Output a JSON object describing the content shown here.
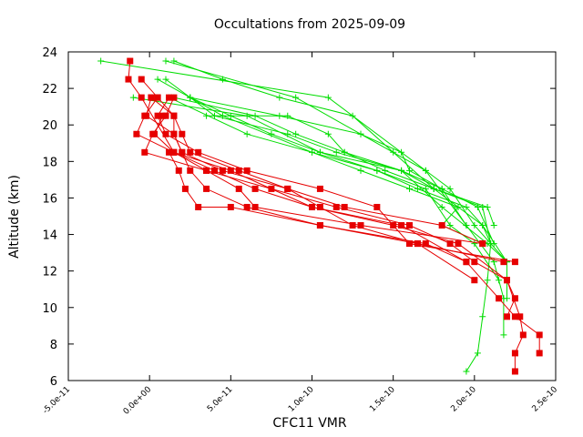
{
  "chart_data": {
    "type": "line",
    "title": "Occultations from 2025-09-09",
    "xlabel": "CFC11 VMR",
    "ylabel": "Altitude (km)",
    "xlim": [
      -5e-11,
      2.5e-10
    ],
    "ylim": [
      6,
      24
    ],
    "xticks": [
      -5e-11,
      0,
      5e-11,
      1e-10,
      1.5e-10,
      2e-10,
      2.5e-10
    ],
    "xtick_labels": [
      "-5.0e-11",
      "0.0e+00",
      "5.0e-11",
      "1.0e-10",
      "1.5e-10",
      "2.0e-10",
      "2.5e-10"
    ],
    "yticks": [
      6,
      8,
      10,
      12,
      14,
      16,
      18,
      20,
      22,
      24
    ],
    "ytick_labels": [
      "6",
      "8",
      "10",
      "12",
      "14",
      "16",
      "18",
      "20",
      "22",
      "24"
    ],
    "grid": false,
    "legend": false,
    "colors": {
      "red": "#e60000",
      "green": "#00dd00"
    },
    "series": [
      {
        "color": "red",
        "marker": "square",
        "points": [
          [
            -1.2e-11,
            23.5
          ],
          [
            -1.3e-11,
            22.5
          ],
          [
            -5e-12,
            21.5
          ],
          [
            1.5e-11,
            18.5
          ],
          [
            5e-11,
            17.5
          ],
          [
            1e-10,
            15.5
          ],
          [
            1.5e-10,
            14.5
          ],
          [
            1.9e-10,
            13.5
          ],
          [
            2.2e-10,
            11.5
          ],
          [
            2.28e-10,
            9.5
          ],
          [
            2.3e-10,
            8.5
          ],
          [
            2.25e-10,
            7.5
          ],
          [
            2.25e-10,
            6.5
          ]
        ]
      },
      {
        "color": "red",
        "marker": "square",
        "points": [
          [
            -5e-12,
            22.5
          ],
          [
            5e-12,
            21.5
          ],
          [
            -3e-12,
            20.5
          ],
          [
            -8e-12,
            19.5
          ],
          [
            1.5e-11,
            18.5
          ],
          [
            4e-11,
            17.5
          ],
          [
            6.5e-11,
            16.5
          ],
          [
            1e-10,
            15.5
          ],
          [
            1.55e-10,
            14.5
          ],
          [
            1.95e-10,
            12.5
          ],
          [
            2.15e-10,
            10.5
          ],
          [
            2.25e-10,
            9.5
          ],
          [
            2.4e-10,
            8.5
          ],
          [
            2.4e-10,
            7.5
          ]
        ]
      },
      {
        "color": "red",
        "marker": "square",
        "points": [
          [
            1.5e-11,
            21.5
          ],
          [
            1e-11,
            20.5
          ],
          [
            2e-12,
            19.5
          ],
          [
            -3e-12,
            18.5
          ],
          [
            3.5e-11,
            17.5
          ],
          [
            7.5e-11,
            16.5
          ],
          [
            1.15e-10,
            15.5
          ],
          [
            1.6e-10,
            14.5
          ],
          [
            1.85e-10,
            13.5
          ],
          [
            2e-10,
            12.5
          ],
          [
            2.2e-10,
            11.5
          ],
          [
            2.25e-10,
            10.5
          ],
          [
            2.2e-10,
            9.5
          ]
        ]
      },
      {
        "color": "red",
        "marker": "square",
        "points": [
          [
            5e-12,
            21.5
          ],
          [
            1.5e-11,
            20.5
          ],
          [
            1.5e-11,
            19.5
          ],
          [
            2e-11,
            18.5
          ],
          [
            4.5e-11,
            17.5
          ],
          [
            8.5e-11,
            16.5
          ],
          [
            1.05e-10,
            15.5
          ],
          [
            1.25e-10,
            14.5
          ],
          [
            1.65e-10,
            13.5
          ],
          [
            2e-10,
            11.5
          ]
        ]
      },
      {
        "color": "red",
        "marker": "square",
        "points": [
          [
            1.2e-11,
            21.5
          ],
          [
            5e-12,
            20.5
          ],
          [
            1e-11,
            19.5
          ],
          [
            3e-11,
            18.5
          ],
          [
            6e-11,
            17.5
          ],
          [
            1.05e-10,
            16.5
          ],
          [
            1.4e-10,
            15.5
          ],
          [
            1.6e-10,
            13.5
          ],
          [
            2.25e-10,
            12.5
          ]
        ]
      },
      {
        "color": "red",
        "marker": "square",
        "points": [
          [
            1e-12,
            21.5
          ],
          [
            1.5e-11,
            20.5
          ],
          [
            2e-11,
            19.5
          ],
          [
            2.5e-11,
            18.5
          ],
          [
            5.5e-11,
            17.5
          ],
          [
            8.5e-11,
            16.5
          ],
          [
            1.2e-10,
            15.5
          ],
          [
            1.8e-10,
            14.5
          ],
          [
            2.05e-10,
            13.5
          ]
        ]
      },
      {
        "color": "red",
        "marker": "square",
        "points": [
          [
            1e-12,
            21.5
          ],
          [
            -2e-12,
            20.5
          ],
          [
            1.5e-11,
            19.5
          ],
          [
            2e-11,
            18.5
          ],
          [
            2.5e-11,
            17.5
          ],
          [
            3.5e-11,
            16.5
          ],
          [
            6e-11,
            15.5
          ],
          [
            1.05e-10,
            14.5
          ],
          [
            1.7e-10,
            13.5
          ],
          [
            1.95e-10,
            12.5
          ]
        ]
      },
      {
        "color": "red",
        "marker": "square",
        "points": [
          [
            8e-12,
            20.5
          ],
          [
            3e-12,
            19.5
          ],
          [
            1.5e-11,
            18.5
          ],
          [
            3.5e-11,
            17.5
          ],
          [
            5.5e-11,
            16.5
          ],
          [
            6.5e-11,
            15.5
          ],
          [
            1.3e-10,
            14.5
          ],
          [
            2.05e-10,
            13.5
          ]
        ]
      },
      {
        "color": "red",
        "marker": "square",
        "points": [
          [
            1.2e-11,
            18.5
          ],
          [
            1.8e-11,
            17.5
          ],
          [
            2.2e-11,
            16.5
          ],
          [
            3e-11,
            15.5
          ],
          [
            5e-11,
            15.5
          ],
          [
            1.05e-10,
            14.5
          ],
          [
            1.65e-10,
            13.5
          ],
          [
            2.18e-10,
            12.5
          ]
        ]
      },
      {
        "color": "green",
        "marker": "plus",
        "points": [
          [
            -3e-11,
            23.5
          ],
          [
            1.1e-10,
            21.5
          ],
          [
            1.7e-10,
            17.5
          ],
          [
            1.95e-10,
            14.5
          ],
          [
            2.12e-10,
            12.5
          ],
          [
            2.18e-10,
            10.5
          ],
          [
            2.18e-10,
            8.5
          ]
        ]
      },
      {
        "color": "green",
        "marker": "plus",
        "points": [
          [
            1e-11,
            23.5
          ],
          [
            9e-11,
            21.5
          ],
          [
            1.3e-10,
            19.5
          ],
          [
            1.7e-10,
            17.5
          ],
          [
            1.85e-10,
            16.5
          ],
          [
            2e-10,
            14.5
          ],
          [
            2.2e-10,
            12.5
          ],
          [
            2.2e-10,
            10.5
          ]
        ]
      },
      {
        "color": "green",
        "marker": "plus",
        "points": [
          [
            1.5e-11,
            23.5
          ],
          [
            4.5e-11,
            22.5
          ],
          [
            8e-11,
            21.5
          ],
          [
            1.25e-10,
            20.5
          ],
          [
            1.5e-10,
            18.5
          ],
          [
            1.75e-10,
            16.5
          ],
          [
            2.05e-10,
            14.5
          ],
          [
            2.1e-10,
            13.5
          ],
          [
            2.08e-10,
            11.5
          ],
          [
            2.05e-10,
            9.5
          ],
          [
            2.02e-10,
            7.5
          ],
          [
            1.95e-10,
            6.5
          ]
        ]
      },
      {
        "color": "green",
        "marker": "plus",
        "points": [
          [
            5e-12,
            22.5
          ],
          [
            4.5e-11,
            20.5
          ],
          [
            1e-10,
            18.5
          ],
          [
            1.4e-10,
            17.5
          ],
          [
            1.7e-10,
            16.5
          ],
          [
            1.85e-10,
            14.5
          ],
          [
            2e-10,
            13.5
          ],
          [
            2.15e-10,
            11.5
          ]
        ]
      },
      {
        "color": "green",
        "marker": "plus",
        "points": [
          [
            -1e-11,
            21.5
          ],
          [
            6e-11,
            20.5
          ],
          [
            1.05e-10,
            18.5
          ],
          [
            1.55e-10,
            17.5
          ],
          [
            1.75e-10,
            16.5
          ],
          [
            2.05e-10,
            15.5
          ],
          [
            2.1e-10,
            13.5
          ]
        ]
      },
      {
        "color": "green",
        "marker": "plus",
        "points": [
          [
            1e-11,
            22.5
          ],
          [
            2.5e-11,
            21.5
          ],
          [
            4e-11,
            20.5
          ],
          [
            8.5e-11,
            19.5
          ],
          [
            1.15e-10,
            18.5
          ],
          [
            1.55e-10,
            17.5
          ],
          [
            1.8e-10,
            15.5
          ],
          [
            2.08e-10,
            13.5
          ],
          [
            2.2e-10,
            12.5
          ]
        ]
      },
      {
        "color": "green",
        "marker": "plus",
        "points": [
          [
            2.5e-11,
            21.5
          ],
          [
            5e-11,
            20.5
          ],
          [
            7.5e-11,
            19.5
          ],
          [
            1.05e-10,
            18.5
          ],
          [
            1.4e-10,
            17.5
          ],
          [
            1.65e-10,
            16.5
          ],
          [
            1.95e-10,
            15.5
          ],
          [
            2.05e-10,
            14.5
          ],
          [
            2.2e-10,
            12.5
          ]
        ]
      },
      {
        "color": "green",
        "marker": "plus",
        "points": [
          [
            1.5e-11,
            21.5
          ],
          [
            6.5e-11,
            20.5
          ],
          [
            9e-11,
            19.5
          ],
          [
            1.2e-10,
            18.5
          ],
          [
            1.45e-10,
            17.5
          ],
          [
            1.75e-10,
            16.5
          ],
          [
            2.08e-10,
            15.5
          ],
          [
            2.12e-10,
            14.5
          ]
        ]
      },
      {
        "color": "green",
        "marker": "plus",
        "points": [
          [
            3.5e-11,
            20.5
          ],
          [
            8.5e-11,
            20.5
          ],
          [
            1.1e-10,
            19.5
          ],
          [
            1.2e-10,
            18.5
          ],
          [
            1.55e-10,
            17.5
          ],
          [
            1.8e-10,
            16.5
          ],
          [
            1.95e-10,
            14.5
          ]
        ]
      },
      {
        "color": "green",
        "marker": "plus",
        "points": [
          [
            1.2e-11,
            21.5
          ],
          [
            6e-11,
            19.5
          ],
          [
            1e-10,
            18.5
          ],
          [
            1.3e-10,
            17.5
          ],
          [
            1.6e-10,
            16.5
          ],
          [
            1.9e-10,
            15.5
          ],
          [
            1.8e-10,
            14.5
          ],
          [
            2.05e-10,
            13.5
          ]
        ]
      },
      {
        "color": "green",
        "marker": "plus",
        "points": [
          [
            2.5e-11,
            21.5
          ],
          [
            8e-11,
            20.5
          ],
          [
            1.3e-10,
            19.5
          ],
          [
            1.55e-10,
            18.5
          ],
          [
            1.6e-10,
            17.5
          ],
          [
            1.8e-10,
            16.5
          ],
          [
            2.02e-10,
            15.5
          ],
          [
            2.12e-10,
            13.5
          ]
        ]
      }
    ]
  }
}
